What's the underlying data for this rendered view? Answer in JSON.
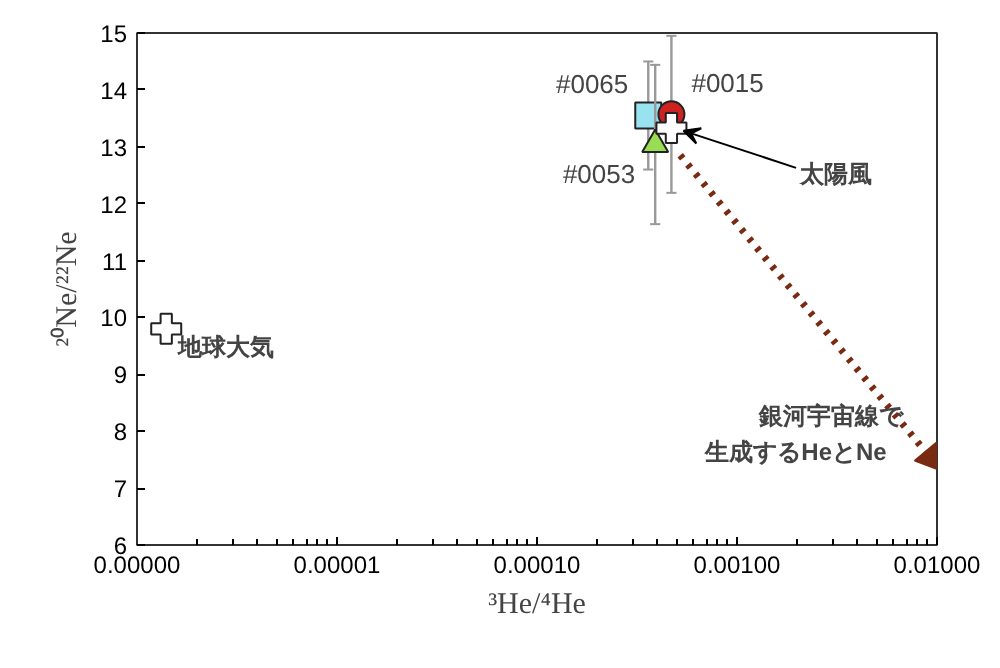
{
  "chart_data": {
    "type": "scatter",
    "xlabel": "³He/⁴He",
    "ylabel": "²⁰Ne/²²Ne",
    "log": "x",
    "grid": false,
    "xlim": [
      1e-06,
      0.01
    ],
    "ylim": [
      6,
      15
    ],
    "xticks": [
      {
        "value": 1e-06,
        "label": "0.00000"
      },
      {
        "value": 1e-05,
        "label": "0.00001"
      },
      {
        "value": 0.0001,
        "label": "0.00010"
      },
      {
        "value": 0.001,
        "label": "0.00100"
      },
      {
        "value": 0.01,
        "label": "0.01000"
      }
    ],
    "yticks": [
      6,
      7,
      8,
      9,
      10,
      11,
      12,
      13,
      14,
      15
    ],
    "series": [
      {
        "name": "地球大気",
        "color": "#ffffff",
        "marker": "cross",
        "x": [
          1.4e-06
        ],
        "values": [
          9.8
        ]
      },
      {
        "name": "#0065",
        "color": "#99e3f0",
        "marker": "square",
        "x": [
          0.00036
        ],
        "values": [
          13.55
        ],
        "errors": [
          0.95
        ]
      },
      {
        "name": "#0015",
        "color": "#cc2222",
        "marker": "circle",
        "x": [
          0.00047
        ],
        "values": [
          13.57
        ],
        "errors": [
          1.38
        ]
      },
      {
        "name": "#0053",
        "color": "#99dd55",
        "marker": "triangle",
        "x": [
          0.00039
        ],
        "values": [
          13.04
        ],
        "errors": [
          1.4
        ]
      },
      {
        "name": "太陽風",
        "color": "#ffffff",
        "marker": "cross",
        "x": [
          0.00047
        ],
        "values": [
          13.33
        ]
      },
      {
        "type": "line",
        "color": "#7a2a10",
        "line_style": "dotted",
        "marker": "triangle",
        "x": [
          0.00052,
          0.0093
        ],
        "values": [
          12.85,
          7.53
        ]
      }
    ],
    "annotations": [
      {
        "text": "銀河宇宙線で",
        "x": 0.0093,
        "y": 7.53
      },
      {
        "text": "生成するHeとNe",
        "x": 0.0093,
        "y": 7.53
      }
    ]
  }
}
